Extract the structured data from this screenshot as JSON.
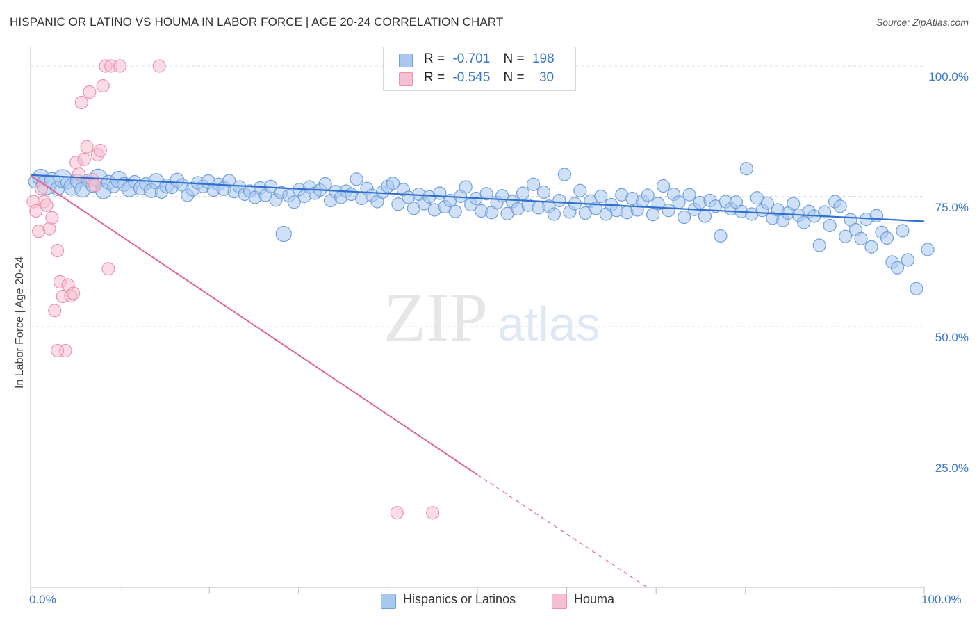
{
  "header": {
    "title": "HISPANIC OR LATINO VS HOUMA IN LABOR FORCE | AGE 20-24 CORRELATION CHART",
    "source": "Source: ZipAtlas.com"
  },
  "watermark": {
    "zip": "ZIP",
    "atlas": "atlas"
  },
  "legend": {
    "rows": [
      {
        "r_label": "R =",
        "r_value": "-0.701",
        "n_label": "N =",
        "n_value": "198"
      },
      {
        "r_label": "R =",
        "r_value": "-0.545",
        "n_label": "N =",
        "n_value": "30"
      }
    ]
  },
  "bottom_legend": [
    "Hispanics or Latinos",
    "Houma"
  ],
  "colors": {
    "blue_fill": "#a9c8f0",
    "blue_stroke": "#6f9fdc",
    "blue_line": "#2f6fcf",
    "pink_fill": "#f7c0d0",
    "pink_stroke": "#ea93ae",
    "pink_line": "#e0649a",
    "axis_label": "#3b78c8",
    "grid": "#dddddd"
  },
  "chart_data": {
    "type": "scatter",
    "ylabel": "In Labor Force | Age 20-24",
    "xlim": [
      0,
      100
    ],
    "ylim": [
      0,
      105
    ],
    "x_tick_labels": {
      "left": "0.0%",
      "right": "100.0%"
    },
    "y_ticks": [
      {
        "value": 100,
        "label": "100.0%"
      },
      {
        "value": 75,
        "label": "75.0%"
      },
      {
        "value": 50,
        "label": "50.0%"
      },
      {
        "value": 25,
        "label": "25.0%"
      }
    ],
    "grid": true,
    "series": [
      {
        "name": "Hispanics or Latinos",
        "color": "blue",
        "trend": {
          "x": [
            0,
            100
          ],
          "y": [
            79.1,
            70.2
          ],
          "dashed_from": null
        },
        "points": [
          [
            0.5,
            77.8,
            9
          ],
          [
            1.2,
            78.6,
            12
          ],
          [
            1.8,
            77.2,
            14
          ],
          [
            2.5,
            78.1,
            11
          ],
          [
            3.1,
            76.5,
            10
          ],
          [
            3.7,
            78.4,
            13
          ],
          [
            4.2,
            77.6,
            9
          ],
          [
            4.8,
            76.8,
            12
          ],
          [
            5.4,
            77.9,
            10
          ],
          [
            6.0,
            76.3,
            11
          ],
          [
            6.6,
            78.0,
            9
          ],
          [
            7.2,
            77.1,
            10
          ],
          [
            7.8,
            78.5,
            13
          ],
          [
            8.4,
            76.0,
            11
          ],
          [
            9.0,
            77.7,
            10
          ],
          [
            9.6,
            76.9,
            9
          ],
          [
            10.2,
            78.2,
            12
          ],
          [
            10.8,
            77.3,
            10
          ],
          [
            11.4,
            76.4,
            11
          ],
          [
            12.0,
            77.8,
            9
          ],
          [
            12.7,
            76.6,
            10
          ],
          [
            13.3,
            77.4,
            9
          ],
          [
            13.9,
            76.1,
            10
          ],
          [
            14.5,
            77.9,
            11
          ],
          [
            15.1,
            75.8,
            9
          ],
          [
            15.7,
            77.0,
            10
          ],
          [
            16.3,
            76.7,
            9
          ],
          [
            16.9,
            78.1,
            10
          ],
          [
            17.5,
            77.2,
            9
          ],
          [
            18.1,
            75.2,
            9
          ],
          [
            18.7,
            76.4,
            10
          ],
          [
            19.3,
            77.6,
            9
          ],
          [
            19.9,
            76.9,
            9
          ],
          [
            20.5,
            77.8,
            10
          ],
          [
            21.1,
            76.2,
            9
          ],
          [
            21.7,
            77.3,
            9
          ],
          [
            22.3,
            76.5,
            10
          ],
          [
            22.9,
            78.0,
            9
          ],
          [
            23.5,
            75.9,
            9
          ],
          [
            24.1,
            76.8,
            9
          ],
          [
            24.7,
            75.4,
            9
          ],
          [
            25.3,
            76.0,
            9
          ],
          [
            25.9,
            74.8,
            9
          ],
          [
            26.5,
            76.6,
            9
          ],
          [
            27.1,
            75.2,
            9
          ],
          [
            27.7,
            76.9,
            9
          ],
          [
            28.3,
            74.3,
            9
          ],
          [
            28.9,
            75.7,
            9
          ],
          [
            29.2,
            67.8,
            11
          ],
          [
            29.8,
            75.1,
            9
          ],
          [
            30.4,
            73.9,
            9
          ],
          [
            31.0,
            76.3,
            9
          ],
          [
            31.6,
            75.0,
            9
          ],
          [
            32.2,
            76.8,
            9
          ],
          [
            32.8,
            75.6,
            9
          ],
          [
            33.4,
            76.2,
            9
          ],
          [
            34.0,
            77.4,
            9
          ],
          [
            34.6,
            74.2,
            9
          ],
          [
            35.2,
            75.9,
            9
          ],
          [
            35.8,
            74.8,
            9
          ],
          [
            36.4,
            76.0,
            9
          ],
          [
            37.0,
            75.4,
            9
          ],
          [
            37.6,
            78.3,
            9
          ],
          [
            38.2,
            74.6,
            9
          ],
          [
            38.8,
            76.5,
            9
          ],
          [
            39.4,
            75.2,
            9
          ],
          [
            40.0,
            74.0,
            9
          ],
          [
            40.6,
            75.8,
            9
          ],
          [
            41.2,
            76.9,
            9
          ],
          [
            41.8,
            77.5,
            9
          ],
          [
            42.4,
            73.5,
            9
          ],
          [
            43.0,
            76.3,
            9
          ],
          [
            43.6,
            74.8,
            9
          ],
          [
            44.2,
            72.7,
            9
          ],
          [
            44.8,
            75.4,
            9
          ],
          [
            45.4,
            73.6,
            9
          ],
          [
            46.0,
            74.9,
            9
          ],
          [
            46.6,
            72.4,
            9
          ],
          [
            47.2,
            75.6,
            9
          ],
          [
            47.8,
            73.0,
            9
          ],
          [
            48.4,
            74.2,
            9
          ],
          [
            49.0,
            72.1,
            9
          ],
          [
            49.6,
            75.0,
            9
          ],
          [
            50.2,
            76.8,
            9
          ],
          [
            50.8,
            73.4,
            9
          ],
          [
            51.4,
            74.6,
            9
          ],
          [
            52.0,
            72.2,
            9
          ],
          [
            52.6,
            75.5,
            9
          ],
          [
            53.2,
            71.9,
            9
          ],
          [
            53.8,
            73.8,
            9
          ],
          [
            54.4,
            75.1,
            9
          ],
          [
            55.0,
            71.7,
            9
          ],
          [
            55.6,
            74.0,
            9
          ],
          [
            56.2,
            72.6,
            9
          ],
          [
            56.8,
            75.6,
            9
          ],
          [
            57.4,
            73.3,
            9
          ],
          [
            58.0,
            77.3,
            9
          ],
          [
            58.6,
            72.8,
            9
          ],
          [
            59.2,
            75.8,
            9
          ],
          [
            59.8,
            73.1,
            9
          ],
          [
            60.4,
            71.6,
            9
          ],
          [
            61.0,
            74.2,
            9
          ],
          [
            61.6,
            79.2,
            9
          ],
          [
            62.2,
            72.0,
            9
          ],
          [
            62.8,
            73.6,
            9
          ],
          [
            63.4,
            76.1,
            9
          ],
          [
            64.0,
            71.8,
            9
          ],
          [
            64.6,
            74.1,
            9
          ],
          [
            65.2,
            72.7,
            9
          ],
          [
            65.8,
            75.0,
            9
          ],
          [
            66.4,
            71.6,
            9
          ],
          [
            67.0,
            73.4,
            9
          ],
          [
            67.6,
            72.3,
            9
          ],
          [
            68.2,
            75.3,
            9
          ],
          [
            68.8,
            71.9,
            9
          ],
          [
            69.4,
            74.6,
            9
          ],
          [
            70.0,
            72.4,
            9
          ],
          [
            70.6,
            74.1,
            9
          ],
          [
            71.2,
            75.2,
            9
          ],
          [
            71.8,
            71.5,
            9
          ],
          [
            72.4,
            73.6,
            9
          ],
          [
            73.0,
            77.0,
            9
          ],
          [
            73.6,
            72.3,
            9
          ],
          [
            74.2,
            75.4,
            9
          ],
          [
            74.8,
            73.9,
            9
          ],
          [
            75.4,
            71.0,
            9
          ],
          [
            76.0,
            75.3,
            9
          ],
          [
            76.6,
            72.5,
            9
          ],
          [
            77.2,
            73.8,
            9
          ],
          [
            77.8,
            71.2,
            9
          ],
          [
            78.4,
            74.2,
            9
          ],
          [
            79.0,
            73.1,
            9
          ],
          [
            79.6,
            67.4,
            9
          ],
          [
            80.2,
            74.0,
            9
          ],
          [
            80.8,
            72.6,
            9
          ],
          [
            81.4,
            73.9,
            9
          ],
          [
            82.0,
            72.1,
            9
          ],
          [
            82.6,
            80.3,
            9
          ],
          [
            83.2,
            71.6,
            9
          ],
          [
            83.8,
            74.7,
            9
          ],
          [
            84.4,
            72.3,
            9
          ],
          [
            85.0,
            73.7,
            9
          ],
          [
            85.6,
            70.8,
            9
          ],
          [
            86.2,
            72.4,
            9
          ],
          [
            86.8,
            70.4,
            9
          ],
          [
            87.4,
            71.8,
            9
          ],
          [
            88.0,
            73.6,
            9
          ],
          [
            88.6,
            71.4,
            9
          ],
          [
            89.2,
            70.0,
            9
          ],
          [
            89.8,
            72.1,
            9
          ],
          [
            90.4,
            71.2,
            9
          ],
          [
            91.0,
            65.6,
            9
          ],
          [
            91.6,
            72.0,
            9
          ],
          [
            92.2,
            69.4,
            9
          ],
          [
            92.8,
            74.0,
            9
          ],
          [
            93.4,
            73.1,
            9
          ],
          [
            94.0,
            67.3,
            9
          ],
          [
            94.6,
            70.5,
            9
          ],
          [
            95.2,
            68.6,
            9
          ],
          [
            95.8,
            66.9,
            9
          ],
          [
            96.4,
            70.6,
            9
          ],
          [
            97.0,
            65.3,
            9
          ],
          [
            97.6,
            71.3,
            9
          ],
          [
            98.2,
            68.1,
            9
          ],
          [
            98.8,
            67.0,
            9
          ],
          [
            99.4,
            62.4,
            9
          ],
          [
            100.0,
            61.3,
            9
          ],
          [
            100.6,
            68.4,
            9
          ],
          [
            101.2,
            62.8,
            9
          ],
          [
            102.2,
            57.3,
            9
          ],
          [
            103.5,
            64.8,
            9
          ]
        ]
      },
      {
        "name": "Houma",
        "color": "pink",
        "trend": {
          "x": [
            0,
            50,
            69
          ],
          "y": [
            79.0,
            21.6,
            0
          ],
          "dashed_from": 50
        },
        "points": [
          [
            0.3,
            74.0,
            9
          ],
          [
            0.6,
            72.2,
            9
          ],
          [
            0.9,
            68.3,
            9
          ],
          [
            1.2,
            76.5,
            9
          ],
          [
            1.5,
            74.0,
            9
          ],
          [
            1.8,
            73.3,
            9
          ],
          [
            2.1,
            68.8,
            9
          ],
          [
            2.4,
            70.9,
            9
          ],
          [
            2.7,
            53.1,
            9
          ],
          [
            3.0,
            64.6,
            9
          ],
          [
            3.3,
            58.6,
            9
          ],
          [
            3.6,
            55.8,
            9
          ],
          [
            3.9,
            45.4,
            9
          ],
          [
            4.2,
            58.0,
            9
          ],
          [
            4.5,
            55.9,
            9
          ],
          [
            4.8,
            56.4,
            9
          ],
          [
            5.1,
            81.5,
            9
          ],
          [
            5.4,
            79.3,
            9
          ],
          [
            5.7,
            93.0,
            9
          ],
          [
            6.0,
            82.1,
            9
          ],
          [
            6.3,
            84.5,
            9
          ],
          [
            6.6,
            95.0,
            9
          ],
          [
            6.9,
            78.2,
            9
          ],
          [
            7.2,
            77.1,
            9
          ],
          [
            7.5,
            83.0,
            9
          ],
          [
            7.8,
            83.8,
            9
          ],
          [
            8.1,
            96.2,
            9
          ],
          [
            8.4,
            100.0,
            9
          ],
          [
            8.7,
            61.1,
            9
          ],
          [
            9.0,
            100.0,
            9
          ]
        ]
      }
    ],
    "extra_points": {
      "houma": [
        [
          10.0,
          100.0,
          9
        ],
        [
          14.4,
          100.0,
          9
        ],
        [
          41.0,
          14.3,
          9
        ],
        [
          45.0,
          14.3,
          9
        ],
        [
          3.0,
          45.4,
          9
        ]
      ]
    }
  }
}
